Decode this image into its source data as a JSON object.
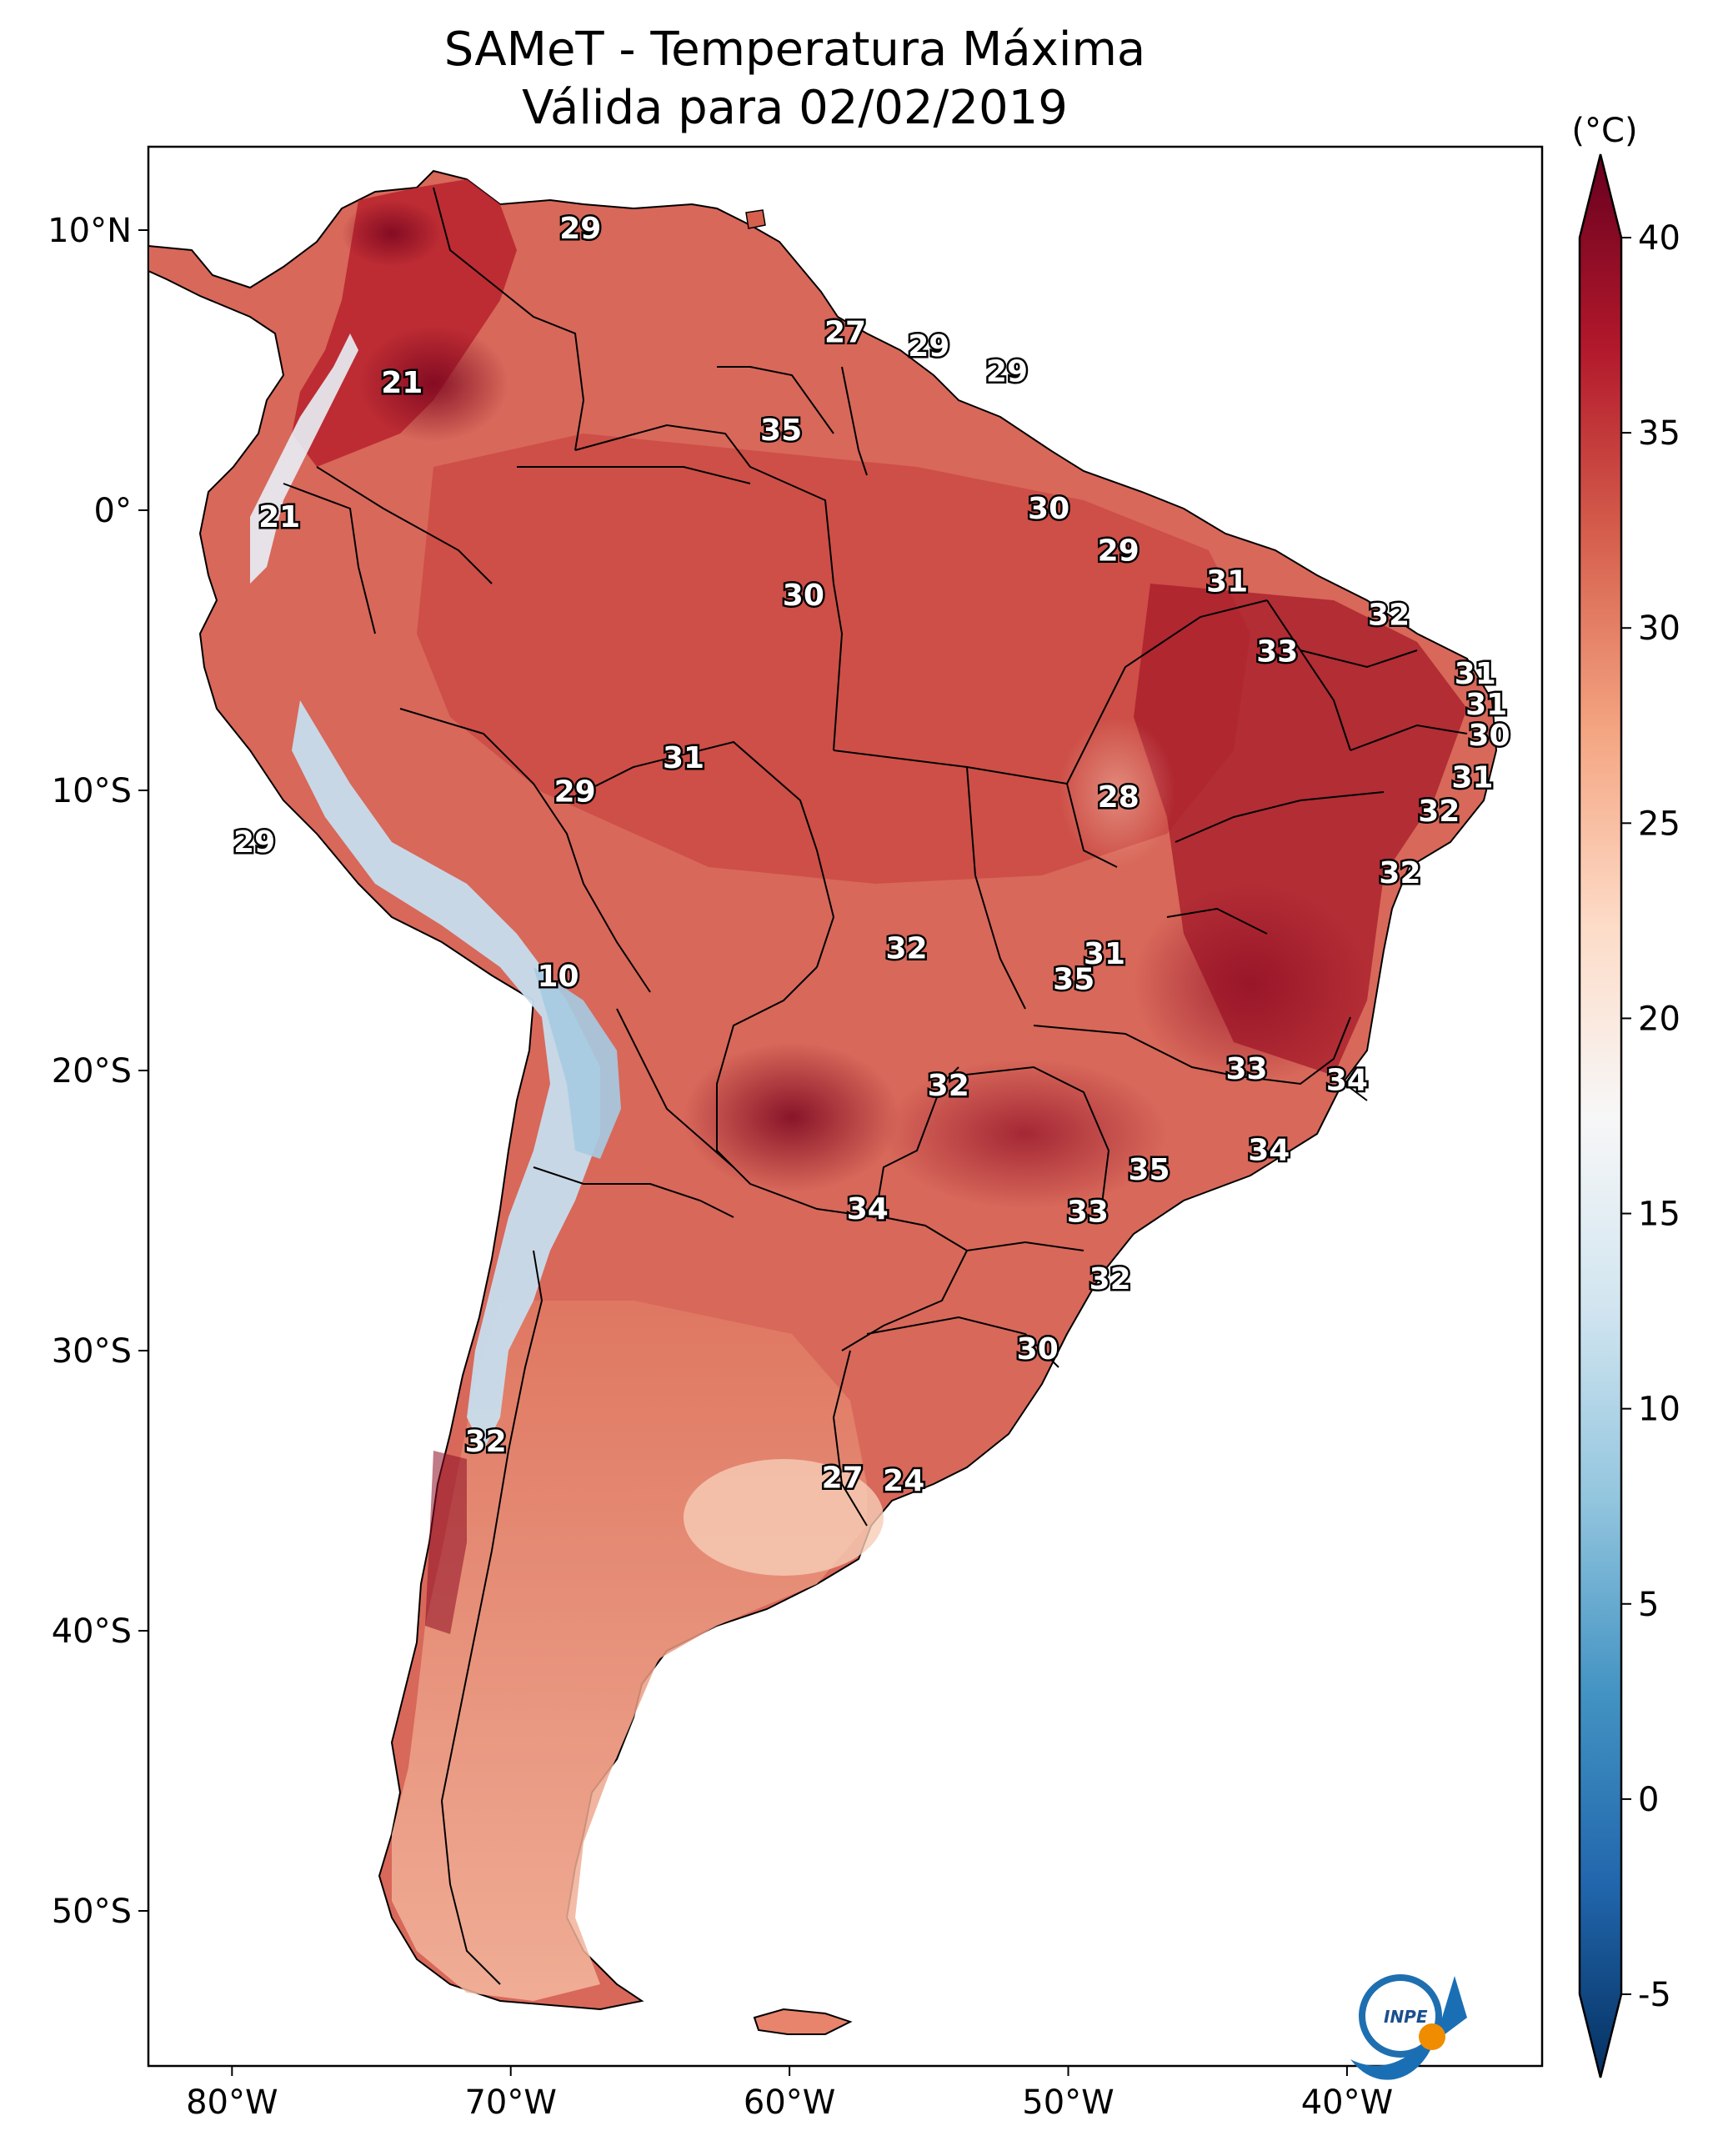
{
  "title": {
    "line1": "SAMeT - Temperatura Máxima",
    "line2": "Válida para 02/02/2019"
  },
  "colorbar": {
    "unit_label": "(°C)",
    "min": -7,
    "max": 42,
    "ticks": [
      40,
      35,
      30,
      25,
      20,
      15,
      10,
      5,
      0,
      -5
    ],
    "colors": [
      "#053061",
      "#2166ac",
      "#4393c3",
      "#92c5de",
      "#d1e5f0",
      "#f7f7f7",
      "#fddbc7",
      "#f4a582",
      "#d6604d",
      "#b2182b",
      "#67001f"
    ]
  },
  "axes": {
    "lat_ticks": [
      "10°N",
      "0°",
      "10°S",
      "20°S",
      "30°S",
      "40°S",
      "50°S"
    ],
    "lon_ticks": [
      "80°W",
      "70°W",
      "60°W",
      "50°W",
      "40°W"
    ]
  },
  "logo": {
    "text": "INPE"
  },
  "temperature_labels": [
    {
      "v": "29",
      "lon": -67.5,
      "lat": 10.0
    },
    {
      "v": "27",
      "lon": -58.0,
      "lat": 6.3
    },
    {
      "v": "29",
      "lon": -55.0,
      "lat": 5.8
    },
    {
      "v": "29",
      "lon": -52.2,
      "lat": 4.9
    },
    {
      "v": "21",
      "lon": -73.9,
      "lat": 4.5
    },
    {
      "v": "35",
      "lon": -60.3,
      "lat": 2.8
    },
    {
      "v": "21",
      "lon": -78.3,
      "lat": -0.3
    },
    {
      "v": "30",
      "lon": -50.7,
      "lat": -0.0
    },
    {
      "v": "29",
      "lon": -48.2,
      "lat": -1.5
    },
    {
      "v": "31",
      "lon": -44.3,
      "lat": -2.6
    },
    {
      "v": "30",
      "lon": -59.5,
      "lat": -3.1
    },
    {
      "v": "32",
      "lon": -38.5,
      "lat": -3.8
    },
    {
      "v": "33",
      "lon": -42.5,
      "lat": -5.1
    },
    {
      "v": "31",
      "lon": -35.4,
      "lat": -5.9
    },
    {
      "v": "31",
      "lon": -35.0,
      "lat": -7.0
    },
    {
      "v": "30",
      "lon": -34.9,
      "lat": -8.1
    },
    {
      "v": "31",
      "lon": -63.8,
      "lat": -8.9
    },
    {
      "v": "29",
      "lon": -67.7,
      "lat": -10.1
    },
    {
      "v": "31",
      "lon": -35.5,
      "lat": -9.6
    },
    {
      "v": "28",
      "lon": -48.2,
      "lat": -10.3
    },
    {
      "v": "32",
      "lon": -36.7,
      "lat": -10.8
    },
    {
      "v": "29",
      "lon": -79.2,
      "lat": -11.9
    },
    {
      "v": "32",
      "lon": -38.1,
      "lat": -13.0
    },
    {
      "v": "32",
      "lon": -55.8,
      "lat": -15.7
    },
    {
      "v": "31",
      "lon": -48.7,
      "lat": -15.9
    },
    {
      "v": "35",
      "lon": -49.8,
      "lat": -16.8
    },
    {
      "v": "10",
      "lon": -68.3,
      "lat": -16.7
    },
    {
      "v": "33",
      "lon": -43.6,
      "lat": -20.0
    },
    {
      "v": "34",
      "lon": -40.0,
      "lat": -20.4
    },
    {
      "v": "32",
      "lon": -54.3,
      "lat": -20.6
    },
    {
      "v": "34",
      "lon": -42.8,
      "lat": -22.9
    },
    {
      "v": "35",
      "lon": -47.1,
      "lat": -23.6
    },
    {
      "v": "34",
      "lon": -57.2,
      "lat": -25.0
    },
    {
      "v": "33",
      "lon": -49.3,
      "lat": -25.1
    },
    {
      "v": "32",
      "lon": -48.5,
      "lat": -27.5
    },
    {
      "v": "30",
      "lon": -51.1,
      "lat": -30.0
    },
    {
      "v": "32",
      "lon": -70.9,
      "lat": -33.3
    },
    {
      "v": "27",
      "lon": -58.1,
      "lat": -34.6
    },
    {
      "v": "24",
      "lon": -55.9,
      "lat": -34.7
    }
  ]
}
